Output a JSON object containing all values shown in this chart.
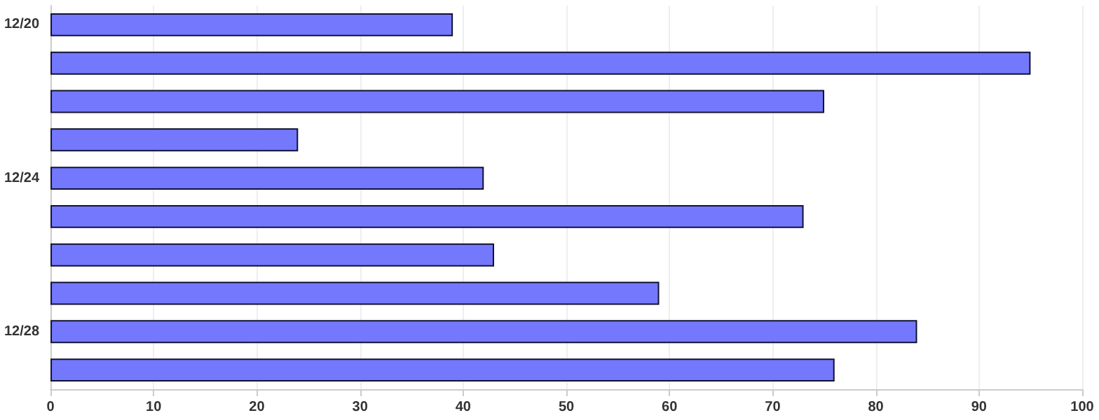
{
  "chart_data": {
    "type": "bar",
    "orientation": "horizontal",
    "categories": [
      "12/20",
      null,
      null,
      null,
      "12/24",
      null,
      null,
      null,
      "12/28",
      null
    ],
    "values": [
      39,
      95,
      75,
      24,
      42,
      73,
      43,
      59,
      84,
      76
    ],
    "color": "#7478fc",
    "xlim": [
      0,
      100
    ],
    "xticks": [
      0,
      10,
      20,
      30,
      40,
      50,
      60,
      70,
      80,
      90,
      100
    ],
    "grid": "x"
  }
}
